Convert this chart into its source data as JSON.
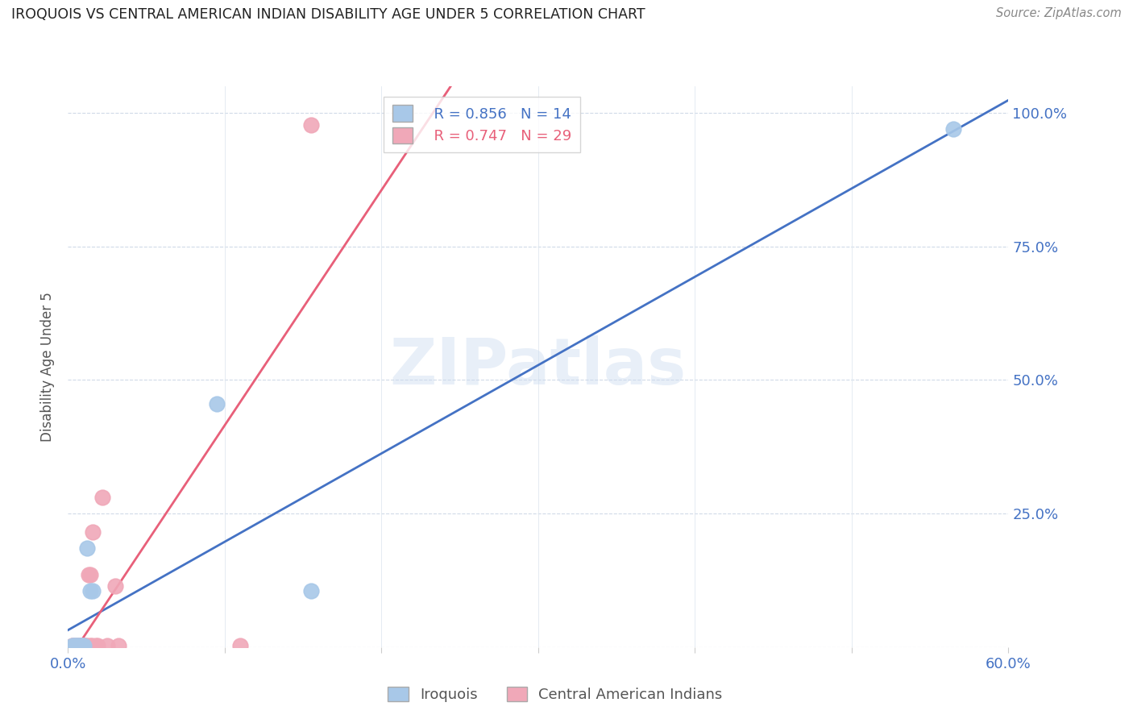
{
  "title": "IROQUOIS VS CENTRAL AMERICAN INDIAN DISABILITY AGE UNDER 5 CORRELATION CHART",
  "source": "Source: ZipAtlas.com",
  "ylabel": "Disability Age Under 5",
  "x_ticks": [
    0.0,
    0.1,
    0.2,
    0.3,
    0.4,
    0.5,
    0.6
  ],
  "x_tick_labels": [
    "0.0%",
    "",
    "",
    "",
    "",
    "",
    "60.0%"
  ],
  "y_ticks": [
    0.0,
    0.25,
    0.5,
    0.75,
    1.0
  ],
  "y_tick_labels_right": [
    "",
    "25.0%",
    "50.0%",
    "75.0%",
    "100.0%"
  ],
  "xlim": [
    0.0,
    0.6
  ],
  "ylim": [
    0.0,
    1.05
  ],
  "iroquois_color": "#a8c8e8",
  "ca_indian_color": "#f0a8b8",
  "trendline_iroquois_color": "#4472c4",
  "trendline_ca_color": "#e8607a",
  "watermark": "ZIPatlas",
  "legend_r_iroquois": "R = 0.856",
  "legend_n_iroquois": "N = 14",
  "legend_r_ca": "R = 0.747",
  "legend_n_ca": "N = 29",
  "iroquois_x": [
    0.003,
    0.004,
    0.005,
    0.006,
    0.007,
    0.008,
    0.009,
    0.01,
    0.012,
    0.014,
    0.016,
    0.095,
    0.155,
    0.565
  ],
  "iroquois_y": [
    0.003,
    0.003,
    0.003,
    0.003,
    0.003,
    0.003,
    0.003,
    0.003,
    0.185,
    0.105,
    0.105,
    0.455,
    0.105,
    0.97
  ],
  "ca_x": [
    0.003,
    0.003,
    0.004,
    0.005,
    0.006,
    0.007,
    0.007,
    0.008,
    0.008,
    0.008,
    0.009,
    0.009,
    0.01,
    0.01,
    0.011,
    0.012,
    0.013,
    0.014,
    0.014,
    0.015,
    0.016,
    0.018,
    0.019,
    0.022,
    0.025,
    0.03,
    0.032,
    0.11,
    0.155
  ],
  "ca_y": [
    0.003,
    0.003,
    0.003,
    0.003,
    0.003,
    0.003,
    0.003,
    0.003,
    0.003,
    0.003,
    0.003,
    0.003,
    0.003,
    0.003,
    0.003,
    0.003,
    0.135,
    0.135,
    0.003,
    0.003,
    0.215,
    0.003,
    0.003,
    0.28,
    0.003,
    0.115,
    0.003,
    0.003,
    0.978
  ],
  "background_color": "#ffffff",
  "grid_color": "#d0dae8",
  "grid_color_v": "#e0e8f0",
  "tick_color": "#4472c4",
  "title_color": "#222222",
  "ylabel_color": "#555555",
  "legend_box_color": "#cccccc"
}
